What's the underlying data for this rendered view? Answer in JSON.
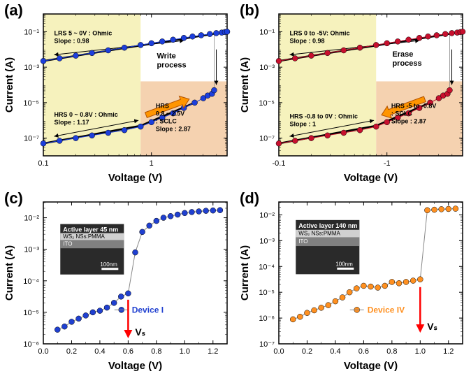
{
  "panels": {
    "a": {
      "label": "(a)",
      "type": "loglog-iv",
      "xlabel": "Voltage (V)",
      "ylabel": "Current (A)",
      "label_fontsize": 15,
      "tick_fontsize": 11,
      "xlim_log": [
        -1,
        0.7
      ],
      "ylim_log": [
        -8,
        0
      ],
      "xticks_log": [
        -1,
        0,
        0.7
      ],
      "xtick_labels": [
        "0.1",
        "1",
        ""
      ],
      "yticks_log": [
        -7,
        -5,
        -3,
        -1
      ],
      "ytick_labels": [
        "10⁻⁷",
        "10⁻⁵",
        "10⁻³",
        "10⁻¹"
      ],
      "background_color": "#ffffff",
      "border_color": "#000000",
      "lrs": {
        "color": "#1d3fdc",
        "marker_size": 4,
        "x_log": [
          -1,
          -0.85,
          -0.7,
          -0.55,
          -0.4,
          -0.25,
          -0.1,
          0,
          0.1,
          0.2,
          0.3,
          0.38,
          0.46,
          0.54,
          0.6,
          0.65,
          0.68,
          0.7
        ],
        "y_log": [
          -2.65,
          -2.5,
          -2.35,
          -2.2,
          -2.05,
          -1.9,
          -1.75,
          -1.65,
          -1.55,
          -1.45,
          -1.35,
          -1.27,
          -1.2,
          -1.13,
          -1.08,
          -1.05,
          -1.02,
          -1
        ]
      },
      "hrs": {
        "color": "#1d3fdc",
        "marker_size": 4,
        "x_log": [
          -1,
          -0.85,
          -0.7,
          -0.55,
          -0.4,
          -0.25,
          -0.1,
          0,
          0.1,
          0.2,
          0.3,
          0.4,
          0.48,
          0.52,
          0.56,
          0.58
        ],
        "y_log": [
          -7.3,
          -7.15,
          -7,
          -6.85,
          -6.7,
          -6.55,
          -6.35,
          -6.1,
          -5.85,
          -5.6,
          -5.3,
          -5.0,
          -4.75,
          -4.6,
          -4.5,
          -4.3
        ]
      },
      "jump": {
        "x_log": 0.58,
        "y1_log": -4.3,
        "y2_log": -1.05
      },
      "shade_left": {
        "x1_log": -1,
        "x2_log": -0.1,
        "color": "#f6f2bd"
      },
      "shade_right": {
        "x1_log": -0.1,
        "x2_log": 0.7,
        "color": "#f5d2b0"
      },
      "annotations": [
        {
          "x_log": -0.9,
          "y_log": -1.2,
          "lines": [
            "LRS 5 ~ 0V : Ohmic",
            "Slope : 0.98"
          ],
          "fontsize": 9
        },
        {
          "x_log": -0.9,
          "y_log": -5.8,
          "lines": [
            "HRS 0 ~ 0.8V : Ohmic",
            "Slope : 1.17"
          ],
          "fontsize": 9
        },
        {
          "x_log": 0.04,
          "y_log": -5.3,
          "lines": [
            "HRS",
            "0.8 ~ 2.5V",
            ": SCLC",
            "Slope : 2.87"
          ],
          "fontsize": 9
        },
        {
          "x_log": 0.05,
          "y_log": -2.5,
          "lines": [
            "Write",
            "process"
          ],
          "fontsize": 11
        }
      ],
      "fit_lines": [
        {
          "x1_log": -1,
          "y1_log": -2.65,
          "x2_log": 0.6,
          "y2_log": -1.1
        },
        {
          "x1_log": -1,
          "y1_log": -7.3,
          "x2_log": -0.1,
          "y2_log": -6.3
        },
        {
          "x1_log": -0.1,
          "y1_log": -6.3,
          "x2_log": 0.4,
          "y2_log": -5.0
        }
      ],
      "orange_arrow": {
        "x1_log": -0.05,
        "y1_log": -5.7,
        "x2_log": 0.35,
        "y2_log": -4.8
      },
      "thin_arrows": [
        {
          "x1_log": -0.9,
          "y1_log": -2.3,
          "x2_log": 0.3,
          "y2_log": -1.5,
          "double": true
        },
        {
          "x1_log": -0.9,
          "y1_log": -6.9,
          "x2_log": -0.12,
          "y2_log": -6.0,
          "double": true
        },
        {
          "x1_log": 0.6,
          "y1_log": -2.0,
          "x2_log": 0.6,
          "y2_log": -4.0,
          "double": false
        }
      ]
    },
    "b": {
      "label": "(b)",
      "type": "loglog-iv",
      "xlabel": "Voltage (V)",
      "ylabel": "Current (A)",
      "label_fontsize": 15,
      "tick_fontsize": 11,
      "xlim_log": [
        -1,
        0.7
      ],
      "ylim_log": [
        -8,
        0
      ],
      "xticks_log": [
        -1,
        0,
        0.7
      ],
      "xtick_labels": [
        "-0.1",
        "-1",
        ""
      ],
      "yticks_log": [
        -7,
        -5,
        -3,
        -1
      ],
      "ytick_labels": [
        "10⁻⁷",
        "10⁻⁵",
        "10⁻³",
        "10⁻¹"
      ],
      "background_color": "#ffffff",
      "border_color": "#000000",
      "lrs": {
        "color": "#c8102e",
        "marker_size": 4,
        "x_log": [
          -1,
          -0.85,
          -0.7,
          -0.55,
          -0.4,
          -0.25,
          -0.1,
          0,
          0.1,
          0.2,
          0.3,
          0.38,
          0.46,
          0.54,
          0.6,
          0.65,
          0.68,
          0.7
        ],
        "y_log": [
          -2.65,
          -2.5,
          -2.35,
          -2.2,
          -2.05,
          -1.9,
          -1.75,
          -1.65,
          -1.55,
          -1.45,
          -1.35,
          -1.27,
          -1.2,
          -1.13,
          -1.08,
          -1.05,
          -1.02,
          -1
        ]
      },
      "hrs": {
        "color": "#c8102e",
        "marker_size": 4,
        "x_log": [
          -1,
          -0.85,
          -0.7,
          -0.55,
          -0.4,
          -0.25,
          -0.1,
          0,
          0.1,
          0.2,
          0.3,
          0.4,
          0.48,
          0.52,
          0.56,
          0.58
        ],
        "y_log": [
          -7.3,
          -7.15,
          -7,
          -6.85,
          -6.7,
          -6.55,
          -6.35,
          -6.1,
          -5.85,
          -5.6,
          -5.3,
          -5.0,
          -4.75,
          -4.6,
          -4.5,
          -4.3
        ]
      },
      "jump": {
        "x_log": 0.58,
        "y1_log": -4.3,
        "y2_log": -1.05
      },
      "shade_left": {
        "x1_log": -1,
        "x2_log": -0.1,
        "color": "#f6f2bd"
      },
      "shade_right": {
        "x1_log": -0.1,
        "x2_log": 0.7,
        "color": "#f5d2b0"
      },
      "annotations": [
        {
          "x_log": -0.9,
          "y_log": -1.2,
          "lines": [
            "LRS 0 to -5V: Ohmic",
            "Slope : 0.98"
          ],
          "fontsize": 9
        },
        {
          "x_log": -0.9,
          "y_log": -5.9,
          "lines": [
            "HRS -0.8 to 0V : Ohmic",
            "Slope : 1"
          ],
          "fontsize": 9
        },
        {
          "x_log": 0.04,
          "y_log": -5.3,
          "lines": [
            "HRS -5 to -0.8V",
            ": SCLC",
            "Slope : 2.87"
          ],
          "fontsize": 9
        },
        {
          "x_log": 0.05,
          "y_log": -2.4,
          "lines": [
            "Erase",
            "process"
          ],
          "fontsize": 11
        }
      ],
      "fit_lines": [
        {
          "x1_log": -1,
          "y1_log": -2.65,
          "x2_log": 0.6,
          "y2_log": -1.1
        },
        {
          "x1_log": -1,
          "y1_log": -7.3,
          "x2_log": -0.1,
          "y2_log": -6.3
        },
        {
          "x1_log": -0.1,
          "y1_log": -6.3,
          "x2_log": 0.4,
          "y2_log": -5.0
        }
      ],
      "orange_arrow": {
        "x1_log": 0.35,
        "y1_log": -4.8,
        "x2_log": -0.05,
        "y2_log": -5.7
      },
      "thin_arrows": [
        {
          "x1_log": -0.9,
          "y1_log": -2.3,
          "x2_log": 0.3,
          "y2_log": -1.5,
          "double": true
        },
        {
          "x1_log": -0.9,
          "y1_log": -6.9,
          "x2_log": -0.12,
          "y2_log": -6.0,
          "double": true
        },
        {
          "x1_log": 0.6,
          "y1_log": -2.0,
          "x2_log": 0.6,
          "y2_log": -4.0,
          "double": false
        }
      ]
    },
    "c": {
      "label": "(c)",
      "type": "semilogy-iv",
      "xlabel": "Voltage (V)",
      "ylabel": "Current (A)",
      "label_fontsize": 15,
      "tick_fontsize": 11,
      "xlim": [
        0,
        1.3
      ],
      "ylim_log": [
        -6,
        -1.5
      ],
      "xticks": [
        0.0,
        0.2,
        0.4,
        0.6,
        0.8,
        1.0,
        1.2
      ],
      "xtick_labels": [
        "0.0",
        "0.2",
        "0.4",
        "0.6",
        "0.8",
        "1.0",
        "1.2"
      ],
      "yticks_log": [
        -6,
        -5,
        -4,
        -3,
        -2
      ],
      "ytick_labels": [
        "10⁻⁶",
        "10⁻⁵",
        "10⁻⁴",
        "10⁻³",
        "10⁻²"
      ],
      "series": {
        "label": "Device I",
        "color": "#2040d0",
        "line_color": "#888888",
        "marker_size": 4,
        "x": [
          0.1,
          0.15,
          0.2,
          0.25,
          0.3,
          0.35,
          0.4,
          0.45,
          0.5,
          0.55,
          0.6,
          0.65,
          0.7,
          0.75,
          0.8,
          0.85,
          0.9,
          0.95,
          1.0,
          1.05,
          1.1,
          1.15,
          1.2,
          1.25
        ],
        "y_log": [
          -5.55,
          -5.45,
          -5.3,
          -5.2,
          -5.1,
          -5,
          -4.95,
          -4.85,
          -4.7,
          -4.5,
          -4.4,
          -3.1,
          -2.45,
          -2.25,
          -2.1,
          -2,
          -1.95,
          -1.9,
          -1.85,
          -1.82,
          -1.8,
          -1.78,
          -1.77,
          -1.76
        ]
      },
      "vs_arrow": {
        "x": 0.6,
        "y1_log": -4.6,
        "y2_log": -5.6,
        "color": "#ff0000",
        "label": "Vₛ"
      },
      "inset": {
        "x": 0.12,
        "y_log": -2.2,
        "w": 0.45,
        "h_log": 1.6,
        "title": "Active layer 45 nm",
        "layer1": "WS₂ NSs:PMMA",
        "layer2": "ITO",
        "scale": "100nm",
        "bg": "#2a2a2a",
        "light": "#d0d0d0",
        "mid": "#808080"
      }
    },
    "d": {
      "label": "(d)",
      "type": "semilogy-iv",
      "xlabel": "Voltage (V)",
      "ylabel": "Current (A)",
      "label_fontsize": 15,
      "tick_fontsize": 11,
      "xlim": [
        0,
        1.3
      ],
      "ylim_log": [
        -7,
        -1.5
      ],
      "xticks": [
        0.0,
        0.2,
        0.4,
        0.6,
        0.8,
        1.0,
        1.2
      ],
      "xtick_labels": [
        "0.0",
        "0.2",
        "0.4",
        "0.6",
        "0.8",
        "1.0",
        "1.2"
      ],
      "yticks_log": [
        -7,
        -6,
        -5,
        -4,
        -3,
        -2
      ],
      "ytick_labels": [
        "10⁻⁷",
        "10⁻⁶",
        "10⁻⁵",
        "10⁻⁴",
        "10⁻³",
        "10⁻²"
      ],
      "series": {
        "label": "Device IV",
        "color": "#ff9020",
        "line_color": "#888888",
        "marker_size": 4,
        "x": [
          0.1,
          0.15,
          0.2,
          0.25,
          0.3,
          0.35,
          0.4,
          0.45,
          0.5,
          0.55,
          0.6,
          0.65,
          0.7,
          0.75,
          0.8,
          0.85,
          0.9,
          0.95,
          1.0,
          1.05,
          1.1,
          1.15,
          1.2,
          1.25
        ],
        "y_log": [
          -6.05,
          -5.95,
          -5.8,
          -5.7,
          -5.6,
          -5.5,
          -5.35,
          -5.2,
          -5.0,
          -4.85,
          -4.75,
          -4.78,
          -4.82,
          -4.75,
          -4.6,
          -4.65,
          -4.6,
          -4.55,
          -4.5,
          -1.82,
          -1.8,
          -1.78,
          -1.77,
          -1.76
        ]
      },
      "vs_arrow": {
        "x": 1.0,
        "y1_log": -4.8,
        "y2_log": -6.3,
        "color": "#ff0000",
        "label": "Vₛ"
      },
      "inset": {
        "x": 0.12,
        "y_log": -2.2,
        "w": 0.45,
        "h_log": 2.1,
        "title": "Active layer 140 nm",
        "layer1": "WS₂ NSs:PMMA",
        "layer2": "ITO",
        "scale": "100nm",
        "bg": "#2a2a2a",
        "light": "#d0d0d0",
        "mid": "#808080"
      }
    }
  }
}
